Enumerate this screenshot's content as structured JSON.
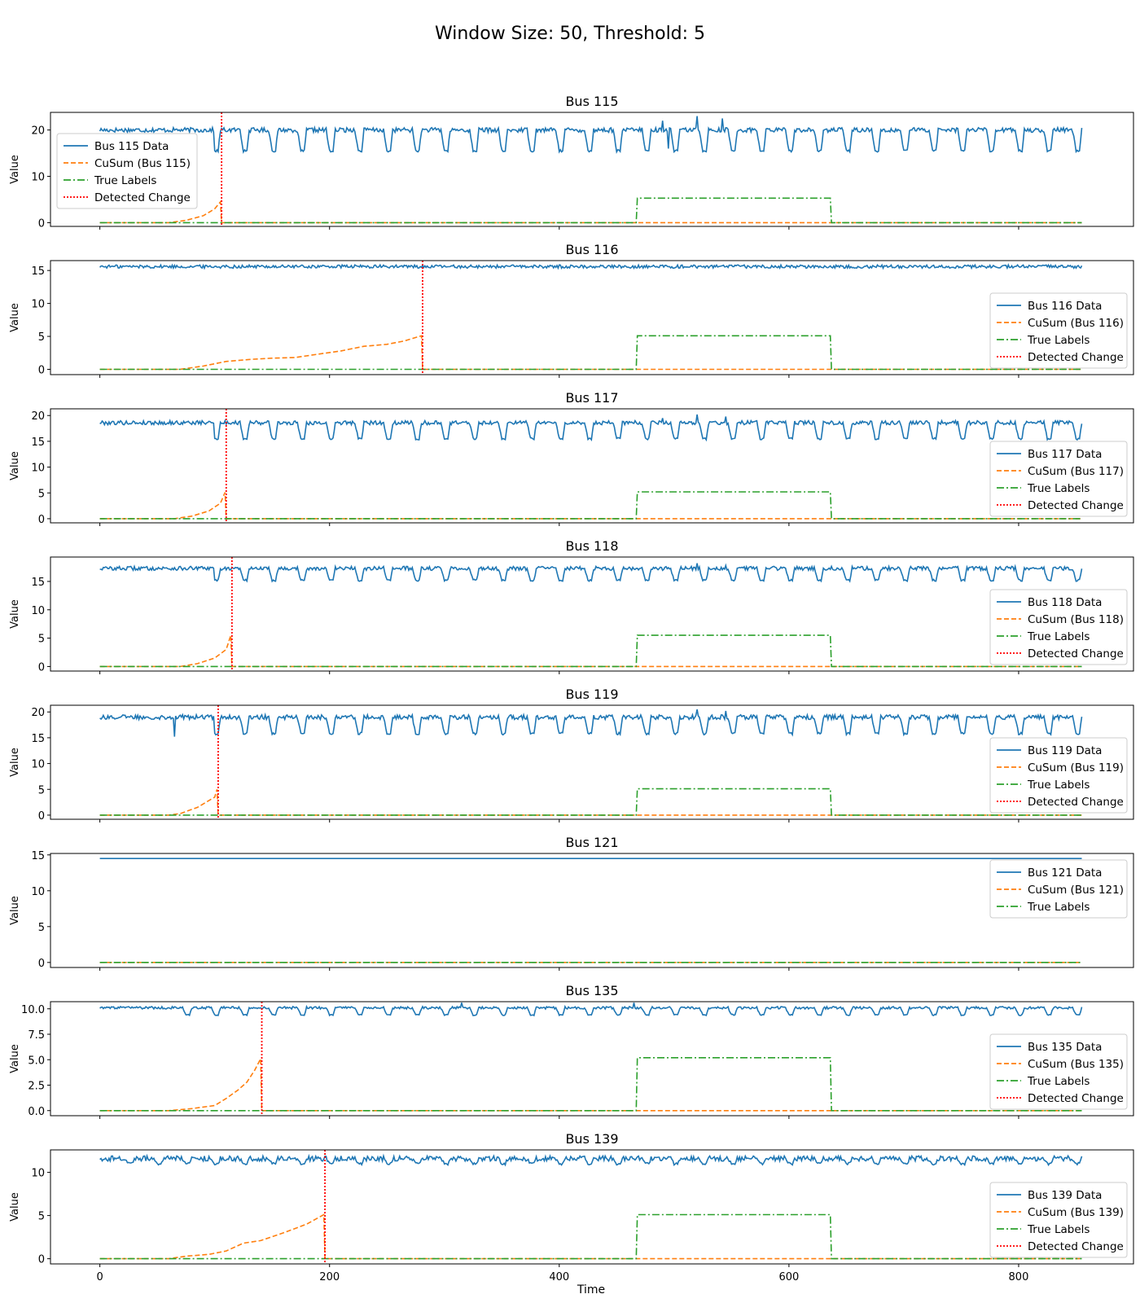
{
  "figure": {
    "suptitle": "Window Size: 50, Threshold: 5",
    "xlabel": "Time",
    "xlim": [
      -43,
      900
    ],
    "xticks": [
      0,
      200,
      400,
      600,
      800
    ],
    "ylabel": "Value",
    "colors": {
      "data": "#1f77b4",
      "cusum": "#ff7f0e",
      "labels": "#2ca02c",
      "detected": "#ff0000",
      "axis": "#000000"
    }
  },
  "chart_data": [
    {
      "type": "line",
      "title": "Bus 115",
      "ylabel": "Value",
      "ylim": [
        -0.8,
        23.8
      ],
      "yticks": [
        0,
        10,
        20
      ],
      "legend_position": "upper-left",
      "legend": [
        "Bus 115 Data",
        "CuSum (Bus 115)",
        "True Labels",
        "Detected Change"
      ],
      "data_pattern": {
        "kind": "oscillating",
        "base": 20,
        "dip": 15.5,
        "noise": 0.5,
        "regular_until": 100,
        "spikes": [
          [
            490,
            22
          ],
          [
            520,
            23
          ],
          [
            542,
            22.5
          ],
          [
            495,
            16
          ]
        ]
      },
      "cusum": [
        [
          0,
          0
        ],
        [
          60,
          0
        ],
        [
          75,
          0.5
        ],
        [
          90,
          1.5
        ],
        [
          100,
          3.0
        ],
        [
          105,
          4.5
        ],
        [
          106,
          0
        ],
        [
          855,
          0
        ]
      ],
      "true_labels": [
        [
          0,
          0
        ],
        [
          467,
          0
        ],
        [
          468,
          5.3
        ],
        [
          636,
          5.3
        ],
        [
          637,
          0
        ],
        [
          855,
          0
        ]
      ],
      "detected_change": 106
    },
    {
      "type": "line",
      "title": "Bus 116",
      "ylabel": "Value",
      "ylim": [
        -0.8,
        16.5
      ],
      "yticks": [
        0,
        5,
        10,
        15
      ],
      "legend_position": "lower-right",
      "legend": [
        "Bus 116 Data",
        "CuSum (Bus 116)",
        "True Labels",
        "Detected Change"
      ],
      "data_pattern": {
        "kind": "flat",
        "base": 15.6,
        "noise": 0.25
      },
      "cusum": [
        [
          0,
          0
        ],
        [
          70,
          0
        ],
        [
          90,
          0.5
        ],
        [
          110,
          1.2
        ],
        [
          130,
          1.5
        ],
        [
          150,
          1.7
        ],
        [
          170,
          1.8
        ],
        [
          190,
          2.3
        ],
        [
          210,
          2.8
        ],
        [
          230,
          3.5
        ],
        [
          250,
          3.8
        ],
        [
          265,
          4.3
        ],
        [
          280,
          5.1
        ],
        [
          281,
          0
        ],
        [
          855,
          0
        ]
      ],
      "true_labels": [
        [
          0,
          0
        ],
        [
          467,
          0
        ],
        [
          468,
          5.1
        ],
        [
          636,
          5.1
        ],
        [
          637,
          0
        ],
        [
          855,
          0
        ]
      ],
      "detected_change": 281
    },
    {
      "type": "line",
      "title": "Bus 117",
      "ylabel": "Value",
      "ylim": [
        -0.8,
        21.3
      ],
      "yticks": [
        0,
        5,
        10,
        15,
        20
      ],
      "legend_position": "lower-right",
      "legend": [
        "Bus 117 Data",
        "CuSum (Bus 117)",
        "True Labels",
        "Detected Change"
      ],
      "data_pattern": {
        "kind": "oscillating",
        "base": 18.6,
        "dip": 15.5,
        "noise": 0.4,
        "regular_until": 100,
        "spikes": [
          [
            520,
            20.2
          ],
          [
            545,
            19.8
          ],
          [
            490,
            19.5
          ]
        ]
      },
      "cusum": [
        [
          0,
          0
        ],
        [
          65,
          0
        ],
        [
          80,
          0.5
        ],
        [
          95,
          1.5
        ],
        [
          105,
          3.0
        ],
        [
          109,
          5.1
        ],
        [
          110,
          0
        ],
        [
          855,
          0
        ]
      ],
      "true_labels": [
        [
          0,
          0
        ],
        [
          467,
          0
        ],
        [
          468,
          5.2
        ],
        [
          636,
          5.2
        ],
        [
          637,
          0
        ],
        [
          855,
          0
        ]
      ],
      "detected_change": 110
    },
    {
      "type": "line",
      "title": "Bus 118",
      "ylabel": "Value",
      "ylim": [
        -0.8,
        19.3
      ],
      "yticks": [
        0,
        5,
        10,
        15
      ],
      "legend_position": "lower-right",
      "legend": [
        "Bus 118 Data",
        "CuSum (Bus 118)",
        "True Labels",
        "Detected Change"
      ],
      "data_pattern": {
        "kind": "oscillating",
        "base": 17.3,
        "dip": 15.2,
        "noise": 0.35,
        "regular_until": 100,
        "spikes": [
          [
            520,
            18.2
          ],
          [
            545,
            17.8
          ]
        ]
      },
      "cusum": [
        [
          0,
          0
        ],
        [
          70,
          0
        ],
        [
          85,
          0.5
        ],
        [
          100,
          1.5
        ],
        [
          110,
          3.0
        ],
        [
          114,
          5.5
        ],
        [
          115,
          0
        ],
        [
          855,
          0
        ]
      ],
      "true_labels": [
        [
          0,
          0
        ],
        [
          467,
          0
        ],
        [
          468,
          5.5
        ],
        [
          636,
          5.5
        ],
        [
          637,
          0
        ],
        [
          855,
          0
        ]
      ],
      "detected_change": 115
    },
    {
      "type": "line",
      "title": "Bus 119",
      "ylabel": "Value",
      "ylim": [
        -0.8,
        21.3
      ],
      "yticks": [
        0,
        5,
        10,
        15,
        20
      ],
      "legend_position": "lower-right",
      "legend": [
        "Bus 119 Data",
        "CuSum (Bus 119)",
        "True Labels",
        "Detected Change"
      ],
      "data_pattern": {
        "kind": "oscillating",
        "base": 19.0,
        "dip": 15.8,
        "noise": 0.45,
        "regular_until": 100,
        "spikes": [
          [
            65,
            15.2
          ],
          [
            520,
            20.5
          ],
          [
            545,
            20.2
          ]
        ]
      },
      "cusum": [
        [
          0,
          0
        ],
        [
          60,
          0
        ],
        [
          70,
          0.3
        ],
        [
          85,
          1.5
        ],
        [
          100,
          3.5
        ],
        [
          102,
          5.0
        ],
        [
          103,
          0
        ],
        [
          855,
          0
        ]
      ],
      "true_labels": [
        [
          0,
          0
        ],
        [
          467,
          0
        ],
        [
          468,
          5.1
        ],
        [
          636,
          5.1
        ],
        [
          637,
          0
        ],
        [
          855,
          0
        ]
      ],
      "detected_change": 103
    },
    {
      "type": "line",
      "title": "Bus 121",
      "ylabel": "Value",
      "ylim": [
        -0.7,
        15.2
      ],
      "yticks": [
        0,
        5,
        10,
        15
      ],
      "legend_position": "upper-right",
      "legend": [
        "Bus 121 Data",
        "CuSum (Bus 121)",
        "True Labels"
      ],
      "data_pattern": {
        "kind": "constant",
        "base": 14.5
      },
      "cusum": [
        [
          0,
          0
        ],
        [
          855,
          0
        ]
      ],
      "true_labels": [
        [
          0,
          0
        ],
        [
          855,
          0
        ]
      ],
      "detected_change": null
    },
    {
      "type": "line",
      "title": "Bus 135",
      "ylabel": "Value",
      "ylim": [
        -0.5,
        10.7
      ],
      "yticks": [
        0.0,
        2.5,
        5.0,
        7.5,
        10.0
      ],
      "ytick_labels": [
        "0.0",
        "2.5",
        "5.0",
        "7.5",
        "10.0"
      ],
      "legend_position": "lower-right",
      "legend": [
        "Bus 135 Data",
        "CuSum (Bus 135)",
        "True Labels",
        "Detected Change"
      ],
      "data_pattern": {
        "kind": "oscillating",
        "base": 10.1,
        "dip": 9.4,
        "noise": 0.12,
        "regular_until": 60,
        "spikes": [
          [
            315,
            10.6
          ],
          [
            465,
            10.6
          ]
        ]
      },
      "cusum": [
        [
          0,
          0
        ],
        [
          60,
          0
        ],
        [
          80,
          0.2
        ],
        [
          100,
          0.5
        ],
        [
          110,
          1.2
        ],
        [
          120,
          2.0
        ],
        [
          128,
          2.8
        ],
        [
          135,
          4.0
        ],
        [
          140,
          5.1
        ],
        [
          141,
          0
        ],
        [
          855,
          0
        ]
      ],
      "true_labels": [
        [
          0,
          0
        ],
        [
          467,
          0
        ],
        [
          468,
          5.2
        ],
        [
          636,
          5.2
        ],
        [
          637,
          0
        ],
        [
          855,
          0
        ]
      ],
      "detected_change": 141
    },
    {
      "type": "line",
      "title": "Bus 139",
      "ylabel": "Value",
      "ylim": [
        -0.6,
        12.6
      ],
      "yticks": [
        0,
        5,
        10
      ],
      "legend_position": "lower-right",
      "legend": [
        "Bus 139 Data",
        "CuSum (Bus 139)",
        "True Labels",
        "Detected Change"
      ],
      "data_pattern": {
        "kind": "oscillating",
        "base": 11.6,
        "dip": 11.0,
        "noise": 0.3,
        "regular_until": 0,
        "spikes": []
      },
      "cusum": [
        [
          0,
          0
        ],
        [
          60,
          0
        ],
        [
          75,
          0.3
        ],
        [
          95,
          0.5
        ],
        [
          110,
          0.9
        ],
        [
          125,
          1.8
        ],
        [
          140,
          2.1
        ],
        [
          160,
          3.0
        ],
        [
          180,
          4.0
        ],
        [
          195,
          5.1
        ],
        [
          196,
          0
        ],
        [
          855,
          0
        ]
      ],
      "true_labels": [
        [
          0,
          0
        ],
        [
          467,
          0
        ],
        [
          468,
          5.1
        ],
        [
          636,
          5.1
        ],
        [
          637,
          0
        ],
        [
          855,
          0
        ]
      ],
      "detected_change": 196
    }
  ]
}
